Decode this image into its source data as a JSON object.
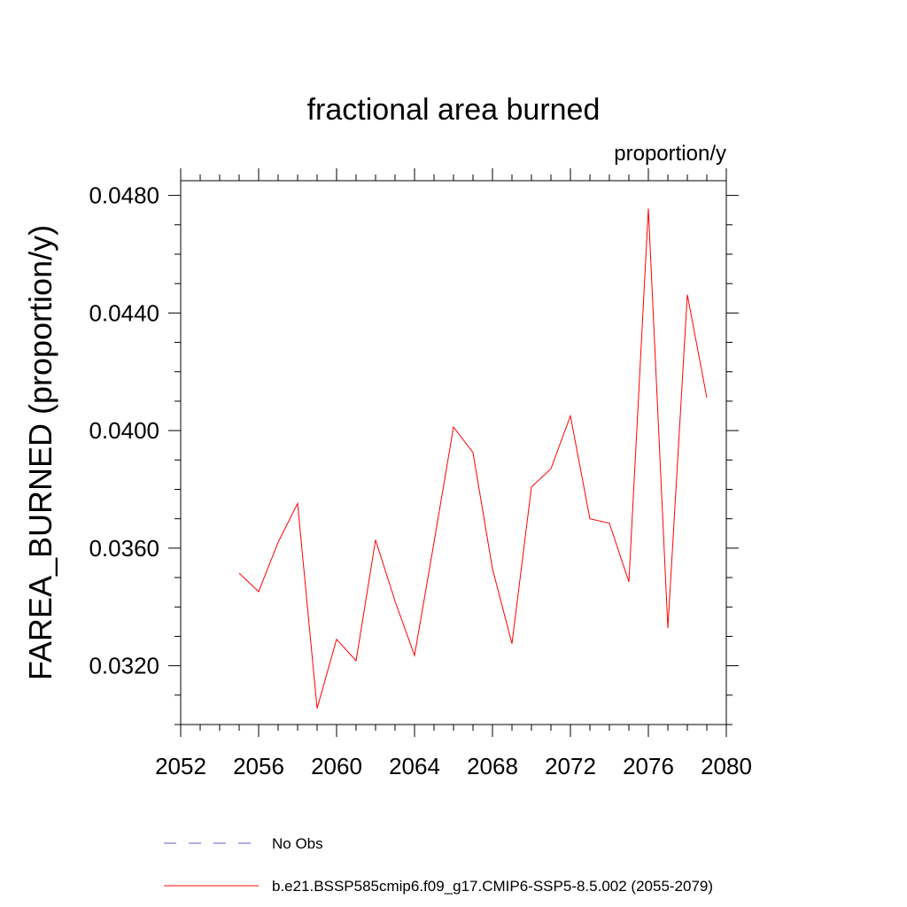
{
  "chart_data": {
    "type": "line",
    "title": "fractional area burned",
    "units": "proportion/y",
    "xlabel": "",
    "ylabel": "FAREA_BURNED  (proportion/y)",
    "xlim": [
      2052,
      2080
    ],
    "ylim": [
      0.03,
      0.0485
    ],
    "xticks": [
      2052,
      2056,
      2060,
      2064,
      2068,
      2072,
      2076,
      2080
    ],
    "yticks": [
      0.032,
      0.036,
      0.04,
      0.044,
      0.048
    ],
    "xtick_labels": [
      "2052",
      "2056",
      "2060",
      "2064",
      "2068",
      "2072",
      "2076",
      "2080"
    ],
    "ytick_labels": [
      "0.0320",
      "0.0360",
      "0.0400",
      "0.0440",
      "0.0480"
    ],
    "grid": false,
    "legend_position": "bottom",
    "series": [
      {
        "name": "No Obs",
        "color": "#6a5acd",
        "style": "dashed",
        "x": [],
        "values": []
      },
      {
        "name": "b.e21.BSSP585cmip6.f09_g17.CMIP6-SSP5-8.5.002 (2055-2079)",
        "color": "#ff0000",
        "style": "solid",
        "x": [
          2055,
          2056,
          2057,
          2058,
          2059,
          2060,
          2061,
          2062,
          2063,
          2064,
          2065,
          2066,
          2067,
          2068,
          2069,
          2070,
          2071,
          2072,
          2073,
          2074,
          2075,
          2076,
          2077,
          2078,
          2079
        ],
        "values": [
          0.03515,
          0.03452,
          0.0362,
          0.03752,
          0.03055,
          0.0329,
          0.03217,
          0.03628,
          0.0342,
          0.03235,
          0.0362,
          0.04012,
          0.03925,
          0.0353,
          0.03275,
          0.03808,
          0.0387,
          0.0405,
          0.037,
          0.03685,
          0.03485,
          0.04755,
          0.03328,
          0.04462,
          0.04112
        ]
      }
    ]
  }
}
